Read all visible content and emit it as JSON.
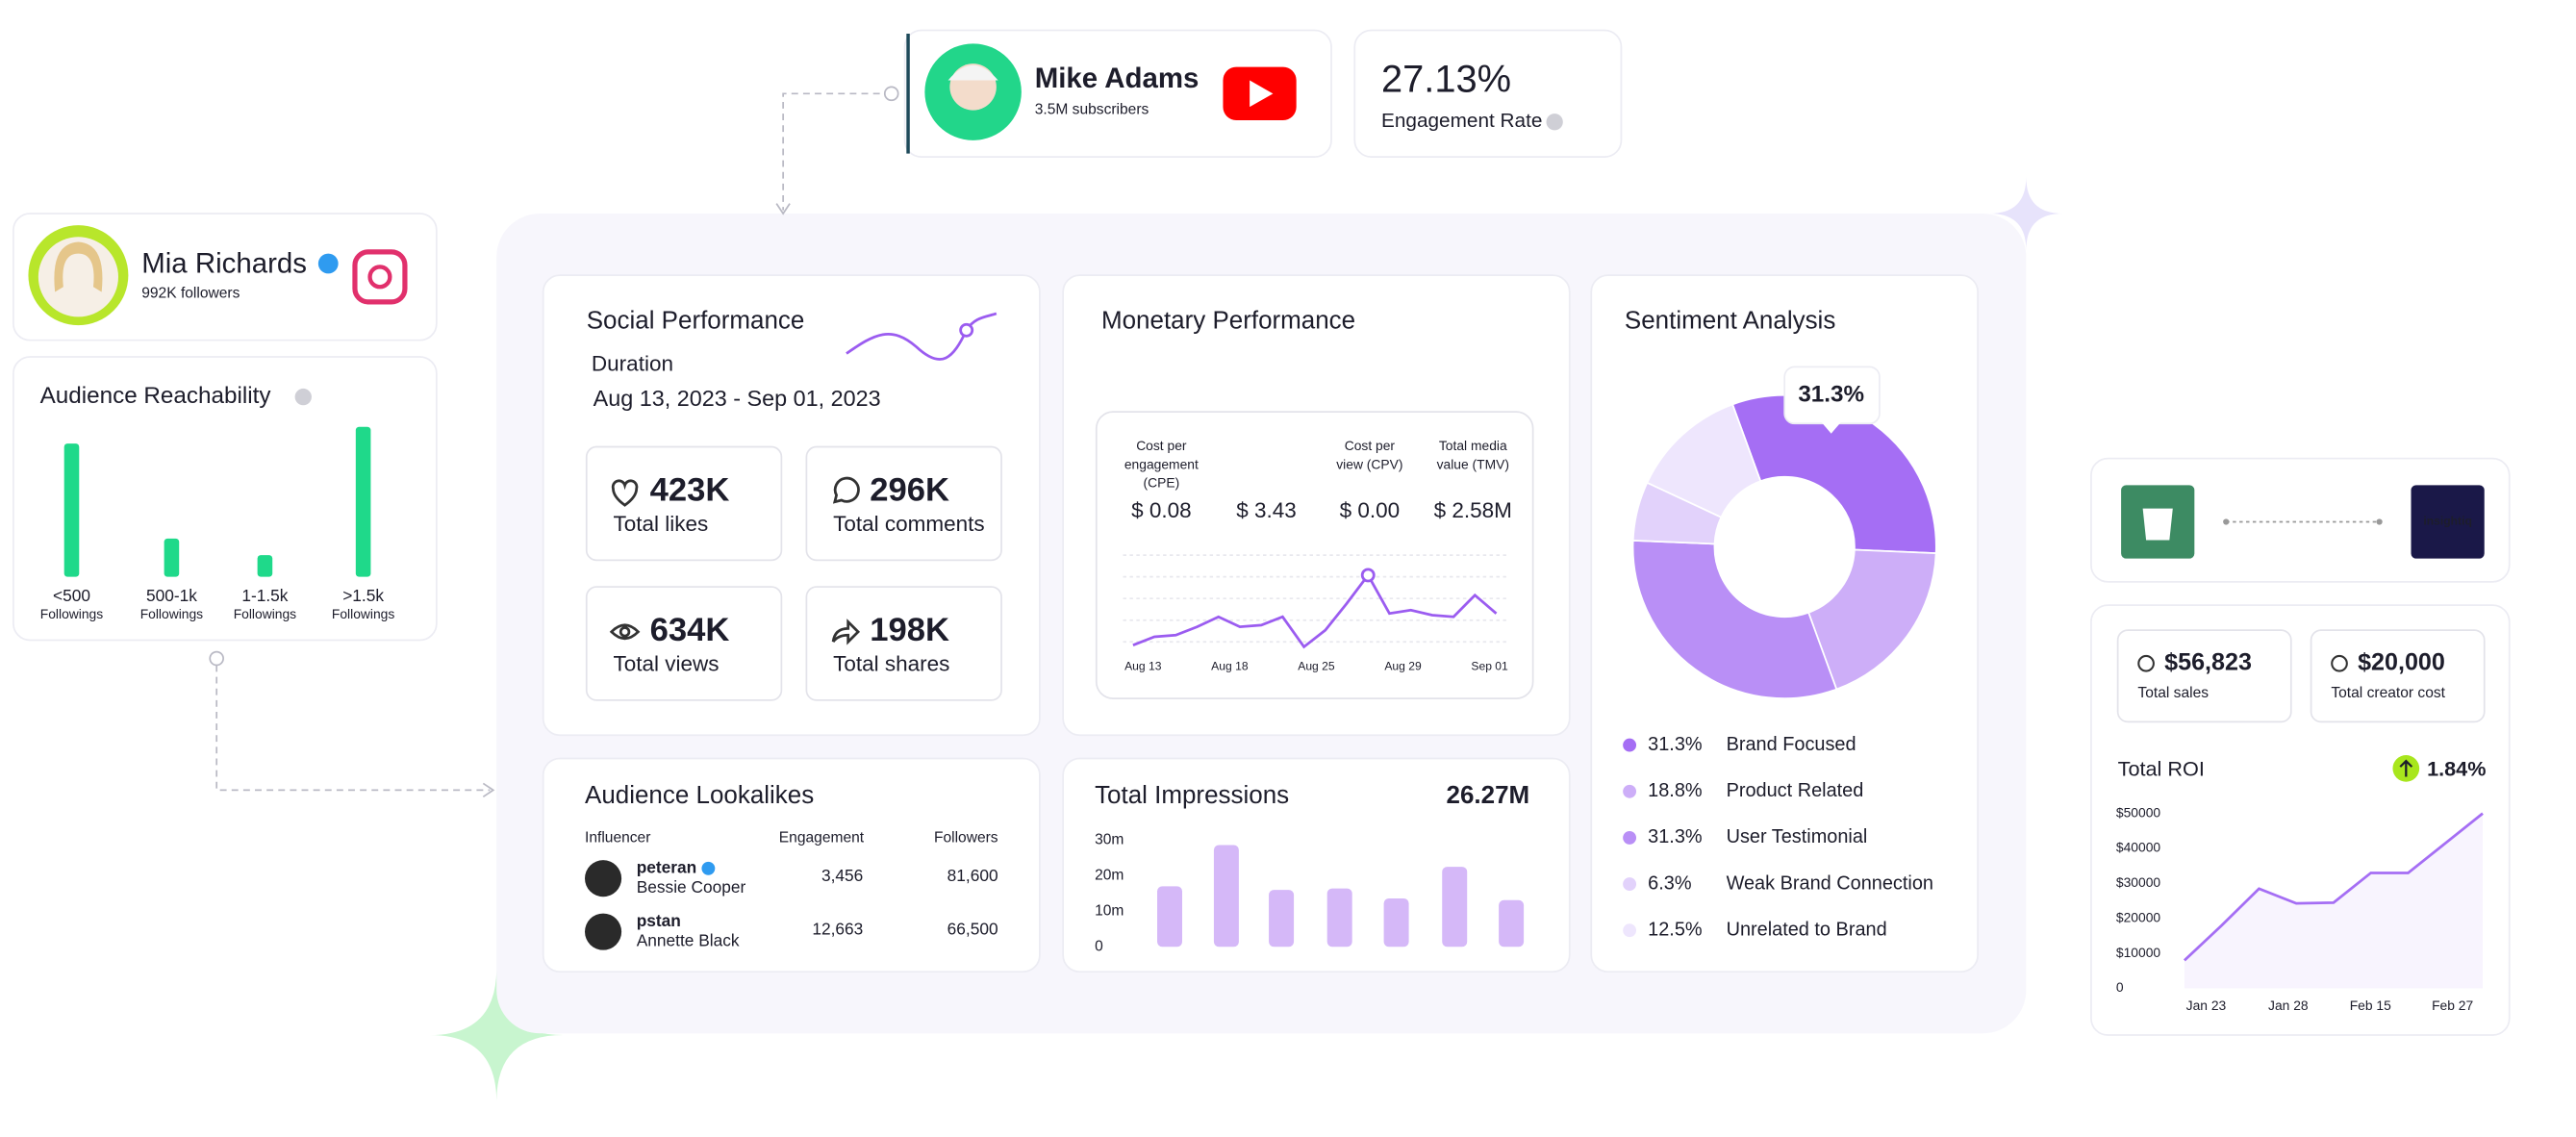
{
  "youtube_creator": {
    "name": "Mike Adams",
    "subscribers": "3.5M subscribers"
  },
  "engagement": {
    "value": "27.13%",
    "label": "Engagement Rate"
  },
  "instagram_creator": {
    "name": "Mia Richards",
    "followers": "992K followers"
  },
  "audience_reachability": {
    "title": "Audience Reachability",
    "type": "bar",
    "categories": [
      "<500",
      "500-1k",
      "1-1.5k",
      ">1.5k"
    ],
    "category_unit": "Followings",
    "values": [
      80,
      23,
      13,
      90
    ],
    "color": "#1fd98a"
  },
  "social_performance": {
    "title": "Social Performance",
    "duration_label": "Duration",
    "duration": "Aug 13, 2023 - Sep 01, 2023",
    "stats": [
      {
        "value": "423K",
        "label": "Total likes"
      },
      {
        "value": "296K",
        "label": "Total comments"
      },
      {
        "value": "634K",
        "label": "Total views"
      },
      {
        "value": "198K",
        "label": "Total shares"
      }
    ]
  },
  "monetary_performance": {
    "title": "Monetary Performance",
    "metrics": [
      {
        "label": [
          "Cost per",
          "engagement",
          "(CPE)"
        ],
        "value": "$ 0.08"
      },
      {
        "value": "$ 3.43"
      },
      {
        "label": [
          "Cost per",
          "view (CPV)"
        ],
        "value": "$ 0.00"
      },
      {
        "label": [
          "Total media",
          "value (TMV)"
        ],
        "value": "$ 2.58M"
      }
    ],
    "chart": {
      "type": "line",
      "color": "#9b5cf0",
      "x_labels": [
        "Aug 13",
        "Aug 18",
        "Aug 25",
        "Aug 29",
        "Sep 01"
      ],
      "values": [
        8,
        13,
        14,
        19,
        25,
        19,
        20,
        25,
        7,
        17,
        33,
        50,
        27,
        29,
        26,
        25,
        38,
        27
      ]
    }
  },
  "sentiment_analysis": {
    "title": "Sentiment Analysis",
    "type": "pie",
    "categories": [
      "Brand Focused",
      "Product Related",
      "User Testimonial",
      "Weak Brand Connection",
      "Unrelated to Brand"
    ],
    "values": [
      31.3,
      18.8,
      31.3,
      6.3,
      12.5
    ],
    "value_labels": [
      "31.3%",
      "18.8%",
      "31.3%",
      "6.3%",
      "12.5%"
    ],
    "colors": [
      "#a56ef4",
      "#cdaef8",
      "#b98ff6",
      "#e2d2fb",
      "#eee6fd"
    ]
  },
  "audience_lookalikes": {
    "title": "Audience Lookalikes",
    "columns": [
      "Influencer",
      "Engagement",
      "Followers"
    ],
    "rows": [
      {
        "handle": "peteran",
        "name": "Bessie Cooper",
        "engagement": "3,456",
        "followers": "81,600",
        "verified": true
      },
      {
        "handle": "pstan",
        "name": "Annette Black",
        "engagement": "12,663",
        "followers": "66,500",
        "verified": false
      }
    ]
  },
  "total_impressions": {
    "title": "Total Impressions",
    "total": "26.27M",
    "type": "bar",
    "color": "#d5b8f8",
    "values": [
      17,
      28.6,
      16,
      16.4,
      13.6,
      22.5,
      13.1
    ],
    "ylim": [
      0,
      30
    ],
    "yticks": [
      0,
      {
        "value": 10,
        "label": "10m"
      },
      {
        "value": 20,
        "label": "20m"
      },
      {
        "value": 30,
        "label": "30m"
      }
    ]
  },
  "integration": {
    "logo": "insightiq"
  },
  "roi": {
    "stats": [
      {
        "value": "$56,823",
        "label": "Total sales"
      },
      {
        "value": "$20,000",
        "label": "Total creator cost"
      }
    ],
    "title": "Total ROI",
    "change": "1.84%",
    "chart": {
      "type": "line",
      "color": "#a56ef4",
      "x_labels": [
        "Jan 23",
        "Jan 28",
        "Feb 15",
        "Feb 27"
      ],
      "values": [
        8000,
        18000,
        28500,
        24300,
        24500,
        33000,
        33000,
        41500,
        50000
      ],
      "ylim": [
        0,
        50000
      ],
      "yticks": [
        0,
        {
          "value": 10000,
          "label": "$10000"
        },
        {
          "value": 20000,
          "label": "$20000"
        },
        {
          "value": 30000,
          "label": "$30000"
        },
        {
          "value": 40000,
          "label": "$40000"
        },
        {
          "value": 50000,
          "label": "$50000"
        }
      ]
    }
  }
}
